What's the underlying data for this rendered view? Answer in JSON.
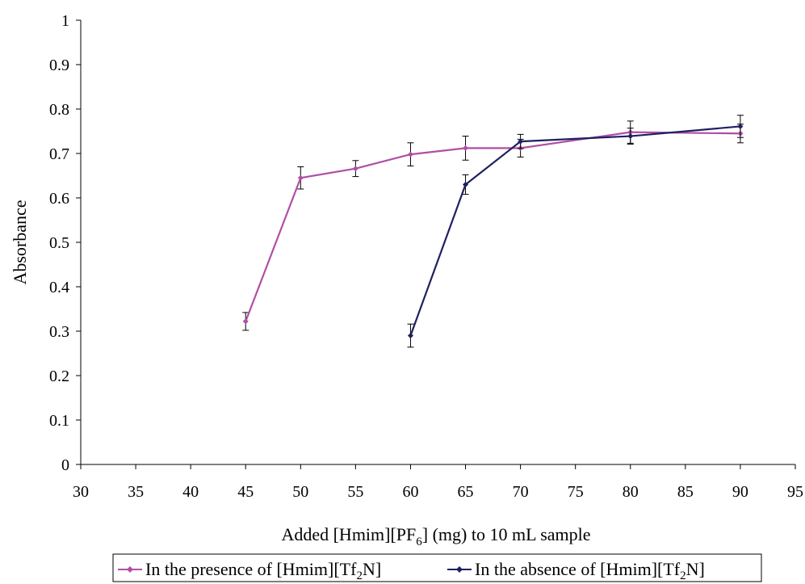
{
  "colors": {
    "presence": "#B04FA6",
    "absence": "#1F2060",
    "axis": "#000000",
    "errorbar": "#000000"
  },
  "chart_data": {
    "type": "line",
    "xlabel": {
      "prefix": "Added [Hmim][PF",
      "subscript": "6",
      "suffix": "] (mg) to 10 mL sample"
    },
    "ylabel": "Absorbance",
    "xlim": [
      30,
      95
    ],
    "ylim": [
      0,
      1
    ],
    "x_ticks": [
      "30",
      "35",
      "40",
      "45",
      "50",
      "55",
      "60",
      "65",
      "70",
      "75",
      "80",
      "85",
      "90",
      "95"
    ],
    "y_ticks": [
      "0",
      "0.1",
      "0.2",
      "0.3",
      "0.4",
      "0.5",
      "0.6",
      "0.7",
      "0.8",
      "0.9",
      "1"
    ],
    "grid": false,
    "legend_position": "bottom",
    "series": [
      {
        "name": "In the presence of [Hmim][Tf2N]",
        "legend": {
          "prefix": "In the presence of [Hmim][Tf",
          "subscript": "2",
          "suffix": "N]"
        },
        "color_key": "presence",
        "marker": "diamond",
        "x": [
          45,
          50,
          55,
          60,
          65,
          70,
          80,
          90
        ],
        "y": [
          0.322,
          0.645,
          0.666,
          0.698,
          0.712,
          0.712,
          0.748,
          0.745
        ],
        "error": [
          0.02,
          0.025,
          0.018,
          0.026,
          0.027,
          0.02,
          0.025,
          0.021
        ]
      },
      {
        "name": "In the absence of [Hmim][Tf2N]",
        "legend": {
          "prefix": "In the absence of [Hmim][Tf",
          "subscript": "2",
          "suffix": "N]"
        },
        "color_key": "absence",
        "marker": "diamond",
        "x": [
          60,
          65,
          70,
          80,
          90
        ],
        "y": [
          0.29,
          0.63,
          0.727,
          0.739,
          0.761
        ],
        "error": [
          0.026,
          0.022,
          0.016,
          0.018,
          0.025
        ]
      }
    ]
  }
}
